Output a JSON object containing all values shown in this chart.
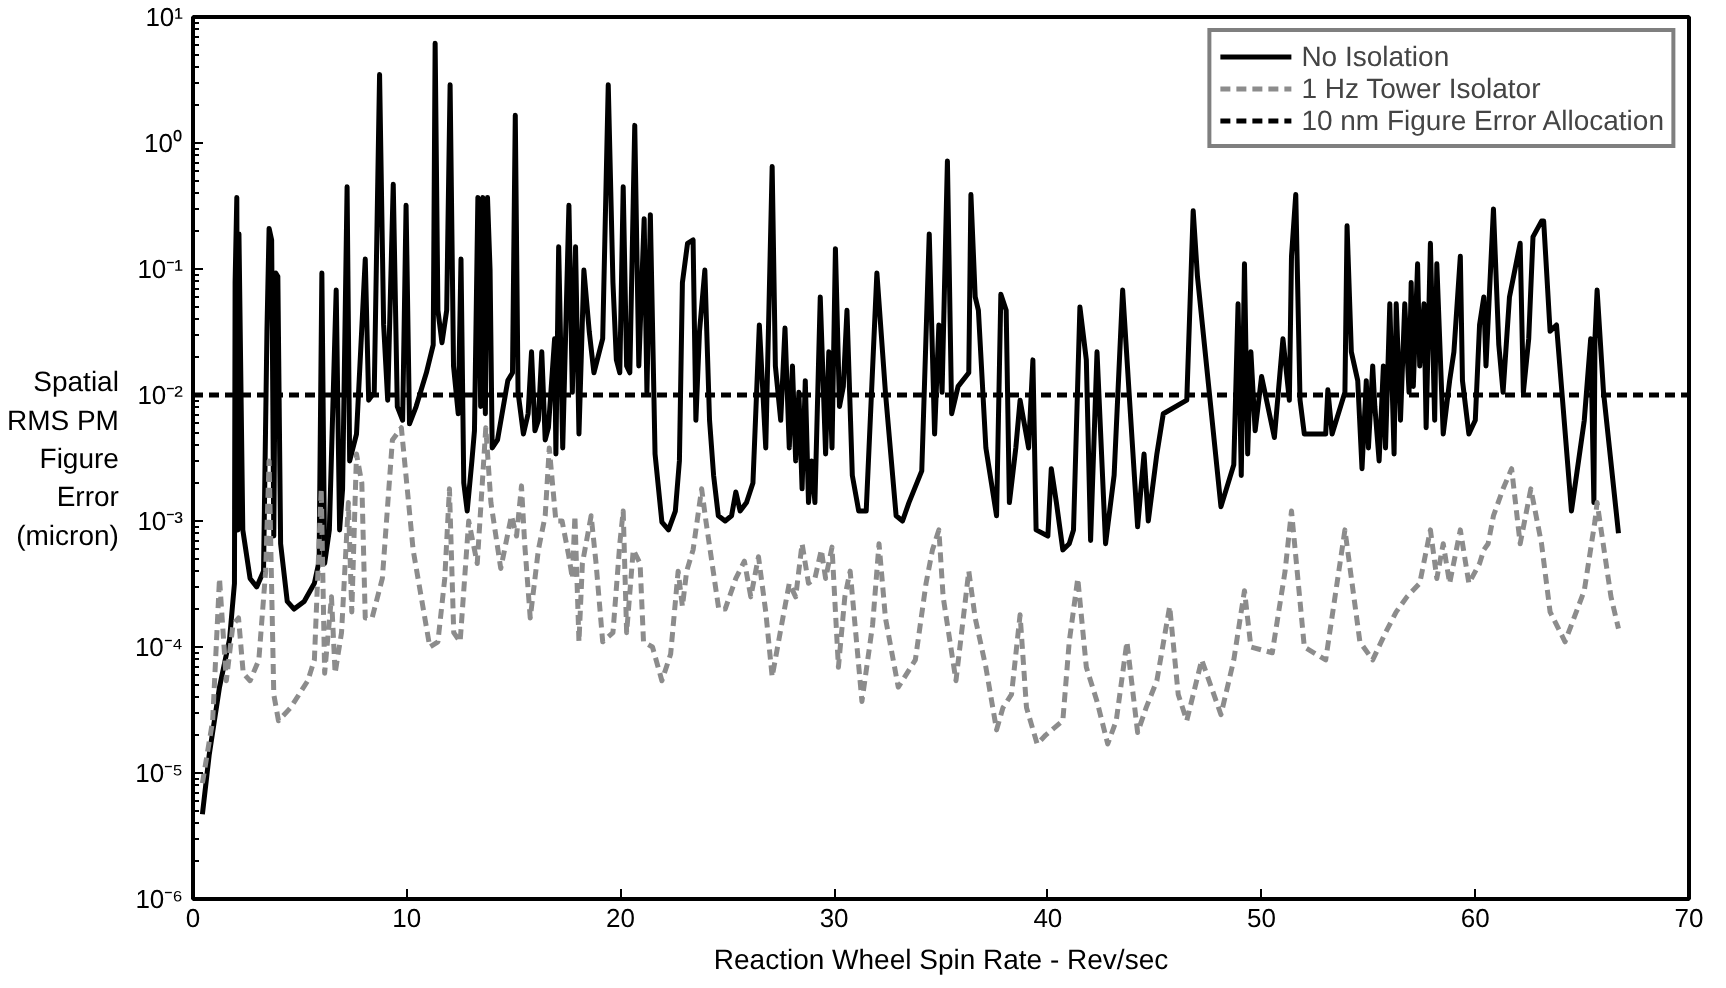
{
  "chart_data": {
    "type": "line",
    "xlabel": "Reaction Wheel Spin Rate - Rev/sec",
    "ylabel": "Spatial\nRMS PM\nFigure\nError\n(micron)",
    "log": "y",
    "grid": false,
    "legend": "top right",
    "marker": "none",
    "xlim": [
      0,
      70
    ],
    "xticks": [
      0,
      10,
      20,
      30,
      40,
      50,
      60,
      70
    ],
    "ylim": [
      1e-06,
      10
    ],
    "yticks": [
      {
        "value": 1e-06,
        "label": "10⁻⁶"
      },
      {
        "value": 1e-05,
        "label": "10⁻⁵"
      },
      {
        "value": 0.0001,
        "label": "10⁻⁴"
      },
      {
        "value": 0.001,
        "label": "10⁻³"
      },
      {
        "value": 0.01,
        "label": "10⁻²"
      },
      {
        "value": 0.1,
        "label": "10⁻¹"
      },
      {
        "value": 1,
        "label": "10⁰"
      },
      {
        "value": 10,
        "label": "10¹"
      }
    ],
    "ref_lines": [
      {
        "axis": "y",
        "value": 0.01,
        "label": "10 nm Figure Error Allocation",
        "color": "#000000",
        "line_style": "dashed"
      }
    ],
    "series": [
      {
        "name": "No Isolation",
        "color": "#000000",
        "line_style": "solid",
        "x": [
          0.44,
          0.76,
          1.24,
          1.71,
          1.94,
          1.97,
          2.05,
          2.1,
          2.15,
          2.33,
          2.67,
          2.98,
          3.3,
          3.46,
          3.56,
          3.68,
          3.78,
          3.87,
          3.97,
          4.1,
          4.41,
          4.73,
          5.2,
          5.68,
          5.9,
          6.03,
          6.16,
          6.38,
          6.7,
          6.86,
          7.0,
          7.21,
          7.33,
          7.65,
          8.06,
          8.22,
          8.48,
          8.73,
          8.92,
          9.11,
          9.37,
          9.56,
          9.81,
          9.97,
          10.13,
          10.44,
          10.92,
          11.24,
          11.33,
          11.46,
          11.65,
          11.87,
          12.03,
          12.19,
          12.41,
          12.54,
          12.67,
          12.83,
          13.05,
          13.17,
          13.33,
          13.46,
          13.56,
          13.68,
          13.78,
          13.9,
          14.0,
          14.25,
          14.73,
          14.95,
          15.08,
          15.21,
          15.46,
          15.68,
          15.84,
          16.0,
          16.16,
          16.32,
          16.48,
          16.63,
          16.92,
          16.98,
          17.11,
          17.3,
          17.59,
          17.75,
          17.9,
          18.06,
          18.29,
          18.54,
          18.76,
          19.17,
          19.43,
          19.65,
          19.81,
          19.97,
          20.13,
          20.29,
          20.44,
          20.67,
          20.86,
          21.11,
          21.24,
          21.4,
          21.62,
          21.94,
          22.25,
          22.57,
          22.76,
          22.9,
          23.14,
          23.4,
          23.53,
          23.7,
          23.95,
          24.17,
          24.36,
          24.58,
          24.9,
          25.2,
          25.4,
          25.6,
          25.9,
          26.2,
          26.5,
          26.8,
          27.1,
          27.25,
          27.5,
          27.7,
          27.9,
          28.05,
          28.2,
          28.35,
          28.5,
          28.65,
          28.8,
          28.95,
          29.1,
          29.35,
          29.6,
          29.75,
          29.9,
          30.06,
          30.25,
          30.43,
          30.6,
          30.85,
          31.15,
          31.5,
          32.0,
          32.4,
          32.9,
          33.2,
          33.5,
          34.1,
          34.45,
          34.7,
          34.9,
          35.05,
          35.3,
          35.5,
          35.8,
          36.3,
          36.4,
          36.6,
          36.75,
          37.1,
          37.6,
          37.8,
          38.05,
          38.2,
          38.5,
          38.7,
          39.1,
          39.3,
          39.45,
          40.0,
          40.16,
          40.4,
          40.7,
          41.0,
          41.2,
          41.5,
          41.8,
          42.0,
          42.3,
          42.7,
          43.1,
          43.5,
          43.8,
          44.2,
          44.5,
          44.7,
          45.1,
          45.4,
          46.5,
          46.8,
          47.0,
          48.1,
          48.7,
          48.9,
          49.05,
          49.2,
          49.35,
          49.5,
          49.7,
          50.0,
          50.6,
          51.0,
          51.3,
          51.4,
          51.6,
          51.8,
          52.0,
          52.5,
          53.0,
          53.1,
          53.3,
          53.9,
          54.0,
          54.2,
          54.5,
          54.7,
          54.9,
          55.0,
          55.2,
          55.3,
          55.5,
          55.7,
          55.8,
          56.0,
          56.2,
          56.3,
          56.5,
          56.7,
          56.9,
          57.0,
          57.1,
          57.3,
          57.4,
          57.6,
          57.7,
          57.9,
          58.1,
          58.2,
          58.5,
          58.8,
          59.0,
          59.3,
          59.4,
          59.7,
          60.0,
          60.2,
          60.4,
          60.5,
          60.85,
          61.1,
          61.3,
          61.6,
          62.1,
          62.25,
          62.5,
          62.7,
          63.1,
          63.2,
          63.5,
          63.8,
          64.5,
          65.1,
          65.4,
          65.55,
          65.6,
          65.7,
          66.0,
          66.7
        ],
        "values": [
          4.7e-06,
          1.4e-05,
          4.8e-05,
          0.000115,
          0.00032,
          0.078,
          0.37,
          0.00085,
          0.19,
          0.00085,
          0.00035,
          0.0003,
          0.0004,
          0.032,
          0.21,
          0.17,
          0.00076,
          0.093,
          0.087,
          0.00066,
          0.00023,
          0.0002,
          0.00023,
          0.00032,
          0.00048,
          0.093,
          0.00046,
          0.00085,
          0.068,
          0.00085,
          0.0018,
          0.45,
          0.003,
          0.0049,
          0.12,
          0.0091,
          0.0105,
          3.5,
          0.036,
          0.0091,
          0.47,
          0.0081,
          0.0063,
          0.32,
          0.0059,
          0.0081,
          0.015,
          0.025,
          6.2,
          0.047,
          0.026,
          0.047,
          2.9,
          0.017,
          0.0071,
          0.12,
          0.002,
          0.0012,
          0.003,
          0.0052,
          0.37,
          0.0081,
          0.37,
          0.0071,
          0.37,
          0.098,
          0.0038,
          0.0044,
          0.013,
          0.015,
          1.66,
          0.0105,
          0.0049,
          0.0071,
          0.022,
          0.0052,
          0.0063,
          0.022,
          0.0044,
          0.0055,
          0.028,
          0.0034,
          0.15,
          0.0038,
          0.32,
          0.0105,
          0.15,
          0.0049,
          0.098,
          0.032,
          0.015,
          0.028,
          2.9,
          0.078,
          0.019,
          0.015,
          0.45,
          0.017,
          0.015,
          1.38,
          0.017,
          0.25,
          0.0105,
          0.27,
          0.0034,
          0.00098,
          0.00085,
          0.0012,
          0.003,
          0.078,
          0.16,
          0.17,
          0.0063,
          0.032,
          0.098,
          0.0063,
          0.0023,
          0.0011,
          0.001,
          0.0011,
          0.0017,
          0.0012,
          0.0014,
          0.002,
          0.036,
          0.0038,
          0.65,
          0.017,
          0.0063,
          0.034,
          0.0038,
          0.017,
          0.003,
          0.0105,
          0.0018,
          0.013,
          0.0014,
          0.003,
          0.0014,
          0.06,
          0.0034,
          0.022,
          0.0038,
          0.145,
          0.0081,
          0.0117,
          0.047,
          0.0023,
          0.0012,
          0.0012,
          0.093,
          0.0105,
          0.0011,
          0.001,
          0.0014,
          0.0025,
          0.19,
          0.0049,
          0.036,
          0.0105,
          0.72,
          0.0071,
          0.0117,
          0.015,
          0.39,
          0.06,
          0.047,
          0.0038,
          0.0011,
          0.063,
          0.047,
          0.0014,
          0.0038,
          0.0091,
          0.0038,
          0.019,
          0.00085,
          0.00076,
          0.0026,
          0.0014,
          0.00059,
          0.00066,
          0.00085,
          0.05,
          0.019,
          0.0007,
          0.022,
          0.00066,
          0.0023,
          0.068,
          0.0105,
          0.0009,
          0.0034,
          0.001,
          0.0034,
          0.0071,
          0.0091,
          0.29,
          0.087,
          0.0013,
          0.0028,
          0.053,
          0.0023,
          0.11,
          0.0034,
          0.022,
          0.0052,
          0.014,
          0.0046,
          0.028,
          0.0091,
          0.126,
          0.39,
          0.0091,
          0.0049,
          0.0049,
          0.0049,
          0.011,
          0.0049,
          0.0105,
          0.22,
          0.022,
          0.013,
          0.0026,
          0.013,
          0.0038,
          0.017,
          0.0081,
          0.003,
          0.017,
          0.0038,
          0.053,
          0.0034,
          0.053,
          0.0063,
          0.053,
          0.0105,
          0.078,
          0.0117,
          0.11,
          0.017,
          0.053,
          0.0055,
          0.16,
          0.0063,
          0.11,
          0.0049,
          0.013,
          0.022,
          0.126,
          0.013,
          0.0049,
          0.0063,
          0.036,
          0.06,
          0.017,
          0.3,
          0.025,
          0.0105,
          0.06,
          0.16,
          0.0105,
          0.028,
          0.18,
          0.24,
          0.24,
          0.032,
          0.036,
          0.0012,
          0.0063,
          0.028,
          0.0014,
          0.028,
          0.068,
          0.0105,
          0.0008
        ]
      },
      {
        "name": "1 Hz Tower Isolator",
        "color": "#8c8c8c",
        "line_style": "dashed",
        "x": [
          0.44,
          0.92,
          1.24,
          1.56,
          1.87,
          2.13,
          2.35,
          2.67,
          3.08,
          3.4,
          3.56,
          3.78,
          4.0,
          4.57,
          5.37,
          5.68,
          6.0,
          6.16,
          6.48,
          6.65,
          6.95,
          7.27,
          7.43,
          7.65,
          7.9,
          8.06,
          8.38,
          8.86,
          9.33,
          9.75,
          10.3,
          11.08,
          11.46,
          11.78,
          12.0,
          12.2,
          12.5,
          12.9,
          13.3,
          13.7,
          13.94,
          14.4,
          14.9,
          15.14,
          15.37,
          15.52,
          15.78,
          16.16,
          16.48,
          16.67,
          16.98,
          17.27,
          17.59,
          17.75,
          17.87,
          18.06,
          18.22,
          18.63,
          18.86,
          19.17,
          19.65,
          19.97,
          20.13,
          20.29,
          20.6,
          20.92,
          21.08,
          21.5,
          21.94,
          22.35,
          22.7,
          22.9,
          23.1,
          23.4,
          23.8,
          24.0,
          24.6,
          24.9,
          25.4,
          25.8,
          26.1,
          26.46,
          26.8,
          27.1,
          27.6,
          27.9,
          28.2,
          28.5,
          28.8,
          29.1,
          29.4,
          29.6,
          29.9,
          30.2,
          30.5,
          30.75,
          31.3,
          31.8,
          32.1,
          32.4,
          33.0,
          33.8,
          34.3,
          34.6,
          34.9,
          35.1,
          35.7,
          36.3,
          36.6,
          37.1,
          37.6,
          37.9,
          38.3,
          38.7,
          39.0,
          39.5,
          39.9,
          40.7,
          41.0,
          41.4,
          41.8,
          42.3,
          42.8,
          43.2,
          43.7,
          44.2,
          44.6,
          45.1,
          45.7,
          46.1,
          46.5,
          47.2,
          48.1,
          48.7,
          49.2,
          49.5,
          50.5,
          51.1,
          51.4,
          52.0,
          53.0,
          53.9,
          54.6,
          55.2,
          55.8,
          56.3,
          56.8,
          57.4,
          57.9,
          58.2,
          58.5,
          58.8,
          59.3,
          59.7,
          60.2,
          60.4,
          60.6,
          60.85,
          61.3,
          61.7,
          62.1,
          62.6,
          63.1,
          63.5,
          64.2,
          65.1,
          65.6,
          65.7,
          66.35,
          66.7
        ],
        "values": [
          8.3e-06,
          2.6e-05,
          0.00035,
          5.4e-05,
          0.00015,
          0.00017,
          6.2e-05,
          5.4e-05,
          7.9e-05,
          0.0004,
          0.003,
          4.2e-05,
          2.6e-05,
          3.3e-05,
          5.4e-05,
          7.9e-05,
          0.0018,
          6.2e-05,
          0.00025,
          6.2e-05,
          0.00013,
          0.0014,
          0.00019,
          0.0034,
          0.002,
          0.00017,
          0.00017,
          0.00035,
          0.0044,
          0.0055,
          0.00059,
          0.0001,
          0.00011,
          0.00035,
          0.0018,
          0.00013,
          0.00011,
          0.001,
          0.00046,
          0.0055,
          0.0014,
          0.00042,
          0.0011,
          0.00076,
          0.0019,
          0.00066,
          0.00017,
          0.00059,
          0.0011,
          0.0038,
          0.001,
          0.001,
          0.00052,
          0.00035,
          0.0011,
          0.00011,
          0.00046,
          0.0011,
          0.00046,
          0.00011,
          0.00013,
          0.00066,
          0.0012,
          0.00013,
          0.00059,
          0.00046,
          0.00011,
          0.0001,
          5.4e-05,
          8.8e-05,
          0.0004,
          0.00021,
          0.0004,
          0.00059,
          0.0018,
          0.001,
          0.0002,
          0.0002,
          0.00035,
          0.00048,
          0.00025,
          0.00052,
          0.00019,
          5.8e-05,
          0.00017,
          0.00032,
          0.00025,
          0.00066,
          0.00032,
          0.00035,
          0.00059,
          0.00035,
          0.00062,
          6.9e-05,
          0.00025,
          0.0004,
          3.7e-05,
          0.00015,
          0.00066,
          0.00017,
          4.8e-05,
          7.9e-05,
          0.00032,
          0.00059,
          0.00085,
          0.00025,
          5.4e-05,
          0.0004,
          0.00017,
          6.9e-05,
          2.2e-05,
          3.3e-05,
          4.2e-05,
          0.00018,
          3.3e-05,
          1.7e-05,
          2e-05,
          2.6e-05,
          0.00011,
          0.00035,
          6.9e-05,
          3.7e-05,
          1.7e-05,
          2.6e-05,
          0.00011,
          2.1e-05,
          3.3e-05,
          5.4e-05,
          0.00021,
          4.2e-05,
          2.6e-05,
          7.9e-05,
          2.9e-05,
          7.9e-05,
          0.00028,
          0.0001,
          9e-05,
          0.0004,
          0.0012,
          0.0001,
          7.9e-05,
          0.00085,
          0.00011,
          7.9e-05,
          0.00013,
          0.00019,
          0.00025,
          0.00032,
          0.00085,
          0.00035,
          0.00066,
          0.00032,
          0.00085,
          0.00032,
          0.00046,
          0.00059,
          0.00066,
          0.0011,
          0.0018,
          0.0026,
          0.00066,
          0.0018,
          0.00066,
          0.00019,
          0.00011,
          0.00028,
          0.001,
          0.0014,
          0.00025,
          0.00014
        ]
      }
    ]
  }
}
